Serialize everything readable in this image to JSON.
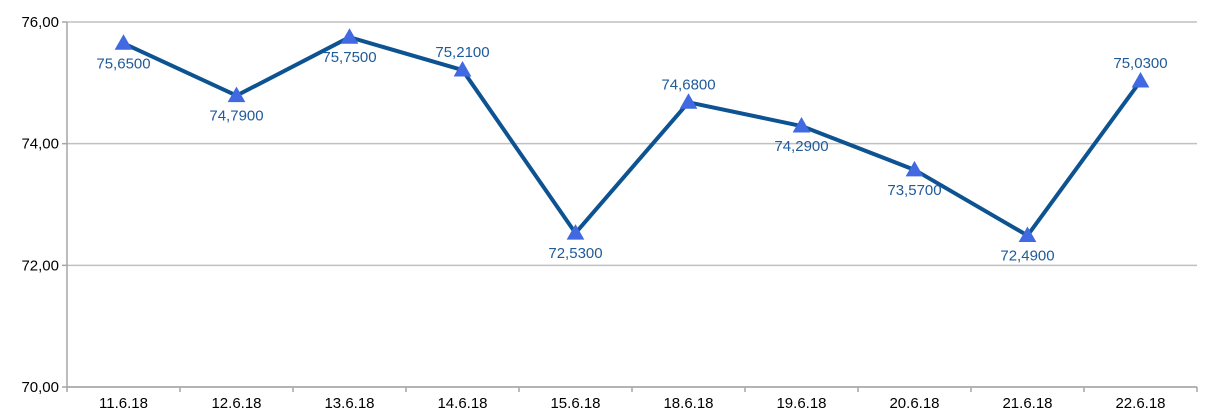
{
  "chart_data": {
    "type": "line",
    "title": "",
    "xlabel": "",
    "ylabel": "",
    "categories": [
      "11.6.18",
      "12.6.18",
      "13.6.18",
      "14.6.18",
      "15.6.18",
      "18.6.18",
      "19.6.18",
      "20.6.18",
      "21.6.18",
      "22.6.18"
    ],
    "values": [
      75.65,
      74.79,
      75.75,
      75.21,
      72.53,
      74.68,
      74.29,
      73.57,
      72.49,
      75.03
    ],
    "data_labels": [
      "75,6500",
      "74,7900",
      "75,7500",
      "75,2100",
      "72,5300",
      "74,6800",
      "74,2900",
      "73,5700",
      "72,4900",
      "75,0300"
    ],
    "label_position": [
      "below",
      "below",
      "below",
      "above",
      "below",
      "above",
      "below",
      "below",
      "below",
      "above"
    ],
    "ylim": [
      70,
      76
    ],
    "y_ticks": [
      70,
      72,
      74,
      76
    ],
    "y_tick_labels": [
      "70,00",
      "72,00",
      "74,00",
      "76,00"
    ],
    "grid": true,
    "legend": "none",
    "marker": "triangle",
    "colors": {
      "line": "#0d5391",
      "marker": "#4169e1",
      "label": "#1f5a99",
      "grid": "#c0c0c0"
    }
  }
}
